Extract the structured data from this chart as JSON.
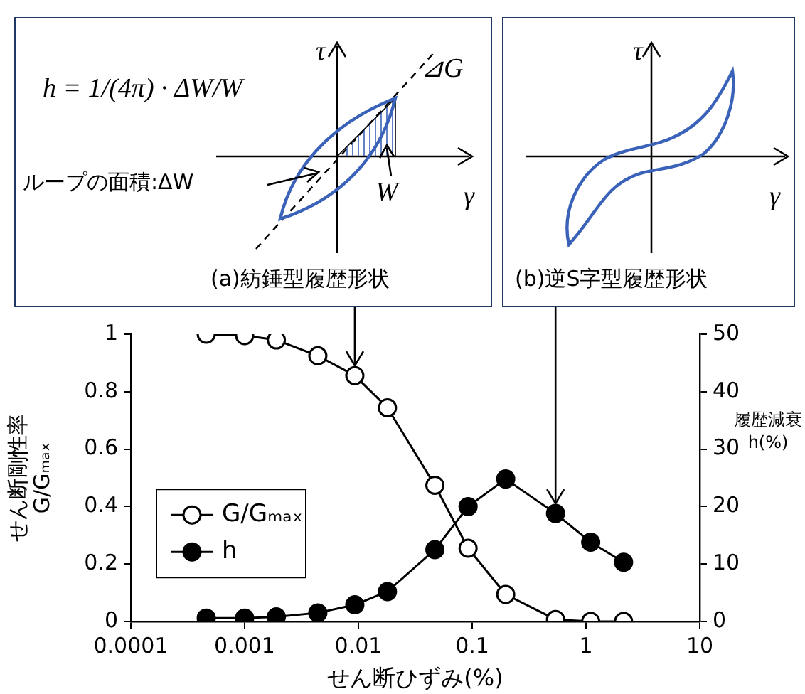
{
  "chart_data": {
    "type": "line",
    "x": [
      0.00046,
      0.001,
      0.0019,
      0.0044,
      0.0093,
      0.018,
      0.047,
      0.092,
      0.197,
      0.54,
      1.1,
      2.14
    ],
    "series": [
      {
        "name": "G/Gₘₐₓ",
        "color": "#000000",
        "values": [
          1.0,
          0.995,
          0.98,
          0.925,
          0.856,
          0.744,
          0.474,
          0.255,
          0.094,
          0.007,
          0.0,
          0.0
        ]
      },
      {
        "name": "h",
        "color": "#000000",
        "axis": "y2",
        "values": [
          0.6,
          0.6,
          0.8,
          1.5,
          2.9,
          5.2,
          12.5,
          20.0,
          24.8,
          18.8,
          13.8,
          10.3
        ]
      }
    ],
    "xlabel": "せん断ひずみ(%)",
    "ylabel": "せん断剛性率\nG/Gₘₐₓ",
    "y2label": "履歴減衰\nh(%)",
    "log": "x",
    "xlim": [
      0.0001,
      10
    ],
    "xticks": [
      0.0001,
      0.001,
      0.01,
      0.1,
      1,
      10
    ],
    "ylim": [
      0,
      1
    ],
    "yticks": [
      0,
      0.2,
      0.4,
      0.6,
      0.8,
      1
    ],
    "y2lim": [
      0,
      50
    ],
    "y2ticks": [
      0,
      10,
      20,
      30,
      40,
      50
    ],
    "grid": false,
    "legend": "left",
    "marker": "circle",
    "line_style": "solid",
    "annotations": [
      "h = 1/(4π) · ΔW/W",
      "τ",
      "γ",
      "⊿G",
      "ループの面積:ΔW",
      "W",
      {
        "text": "(a)紡錘型履歴形状",
        "x": 0.0093,
        "y": 0.856
      },
      "τ",
      "γ",
      {
        "text": "(b)逆S字型履歴形状",
        "x": 0.54,
        "y": 0.376
      }
    ]
  }
}
